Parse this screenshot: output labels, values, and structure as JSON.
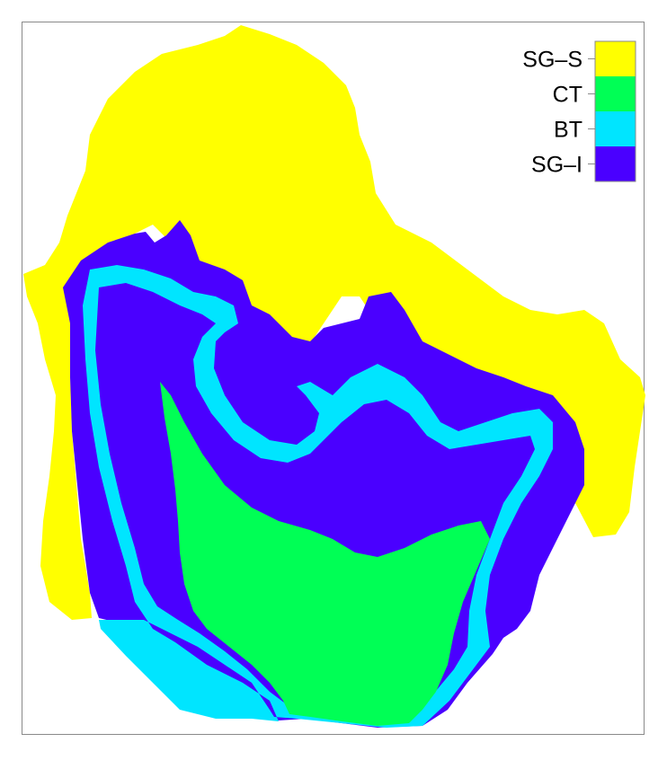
{
  "legend": {
    "items": [
      {
        "label": "SG–S",
        "color": "#ffff00"
      },
      {
        "label": "CT",
        "color": "#00ff55"
      },
      {
        "label": "BT",
        "color": "#00e5ff"
      },
      {
        "label": "SG–I",
        "color": "#4a00ff"
      }
    ]
  },
  "colors": {
    "frame": "#8a8a8a",
    "background": "#ffffff"
  }
}
